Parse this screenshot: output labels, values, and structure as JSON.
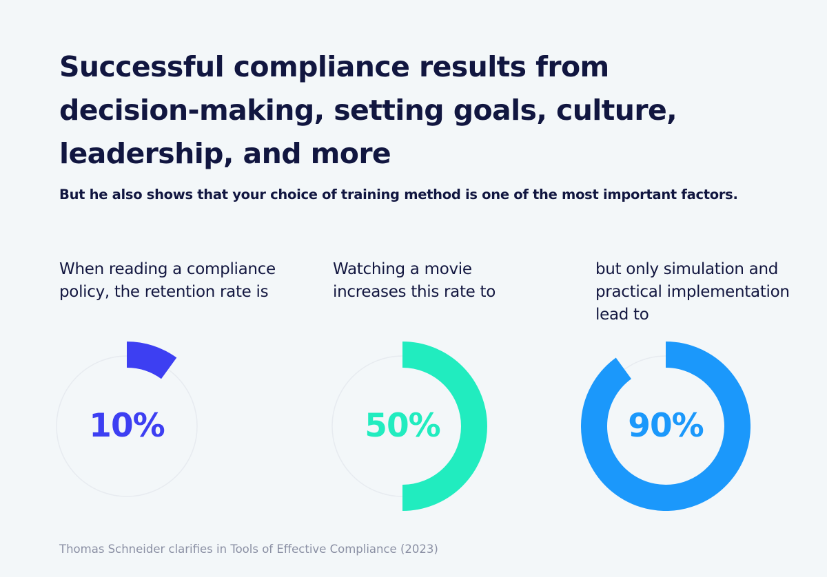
{
  "title": "Successful compliance results from decision-making, setting goals, culture, leadership, and more",
  "subtitle": "But he also shows that your choice of training method is one of the most important factors.",
  "chart_data": [
    {
      "type": "pie",
      "caption": "When reading a compliance policy, the retention rate is",
      "value": 10,
      "label": "10%",
      "color": "#3d3ff2"
    },
    {
      "type": "pie",
      "caption": "Watching a movie increases this rate to",
      "value": 50,
      "label": "50%",
      "color": "#21ecbf"
    },
    {
      "type": "pie",
      "caption": "but only simulation and practical implementation lead to",
      "value": 90,
      "label": "90%",
      "color": "#1b98fb"
    }
  ],
  "source": "Thomas Schneider clarifies in Tools of Effective Compliance (2023)",
  "colors": {
    "background": "#f3f7f9",
    "text": "#111640",
    "track": "#e7ebf0",
    "muted": "#8a8fa3"
  }
}
